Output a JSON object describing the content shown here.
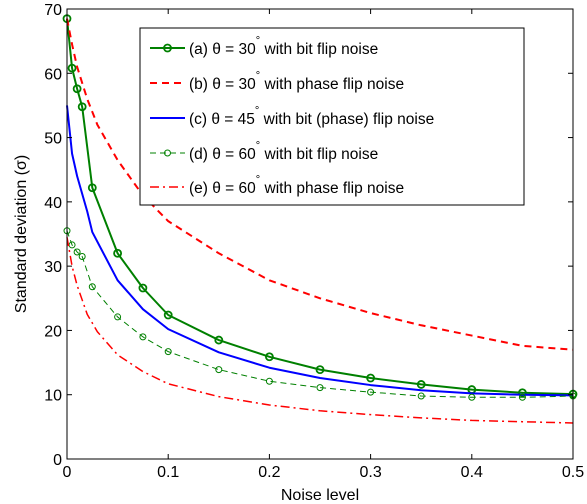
{
  "chart_data": {
    "type": "line",
    "xlabel": "Noise level",
    "ylabel": "Standard deviation (σ)",
    "xlim": [
      0,
      0.5
    ],
    "ylim": [
      0,
      70
    ],
    "x_ticks": [
      "0",
      "0.1",
      "0.2",
      "0.3",
      "0.4",
      "0.5"
    ],
    "y_ticks": [
      "0",
      "10",
      "20",
      "30",
      "40",
      "50",
      "60",
      "70"
    ],
    "grid": false,
    "legend_position": "top-right",
    "series": [
      {
        "name": "(a) θ = 30° with bit flip noise",
        "label": "(a) θ = 30",
        "label_suffix": " with bit flip noise",
        "color": "#008000",
        "style": "solid",
        "marker": "circle",
        "points": [
          [
            0,
            68.5
          ],
          [
            0.005,
            60.8
          ],
          [
            0.01,
            57.6
          ],
          [
            0.015,
            54.8
          ],
          [
            0.025,
            42.2
          ],
          [
            0.05,
            32.0
          ],
          [
            0.075,
            26.6
          ],
          [
            0.1,
            22.4
          ],
          [
            0.15,
            18.5
          ],
          [
            0.2,
            15.9
          ],
          [
            0.25,
            13.9
          ],
          [
            0.3,
            12.6
          ],
          [
            0.35,
            11.6
          ],
          [
            0.4,
            10.8
          ],
          [
            0.45,
            10.3
          ],
          [
            0.5,
            10.1
          ]
        ]
      },
      {
        "name": "(b) θ = 30° with phase flip noise",
        "label": "(b) θ = 30",
        "label_suffix": " with phase flip noise",
        "color": "#ff0000",
        "style": "dashed",
        "marker": "none",
        "points": [
          [
            0,
            68.5
          ],
          [
            0.005,
            64.5
          ],
          [
            0.01,
            61.0
          ],
          [
            0.02,
            56.0
          ],
          [
            0.03,
            52.0
          ],
          [
            0.05,
            46.5
          ],
          [
            0.075,
            41.0
          ],
          [
            0.1,
            37.0
          ],
          [
            0.15,
            32.0
          ],
          [
            0.2,
            27.8
          ],
          [
            0.25,
            25.0
          ],
          [
            0.3,
            22.7
          ],
          [
            0.35,
            20.8
          ],
          [
            0.4,
            19.2
          ],
          [
            0.45,
            17.6
          ],
          [
            0.5,
            17.0
          ]
        ]
      },
      {
        "name": "(c) θ = 45° with bit (phase) flip noise",
        "label": "(c) θ = 45",
        "label_suffix": " with bit (phase) flip noise",
        "color": "#0000ff",
        "style": "solid",
        "marker": "none",
        "points": [
          [
            0,
            55.0
          ],
          [
            0.005,
            47.5
          ],
          [
            0.01,
            44.0
          ],
          [
            0.02,
            38.5
          ],
          [
            0.025,
            35.3
          ],
          [
            0.05,
            27.8
          ],
          [
            0.075,
            23.3
          ],
          [
            0.1,
            20.2
          ],
          [
            0.15,
            16.6
          ],
          [
            0.2,
            14.2
          ],
          [
            0.25,
            12.6
          ],
          [
            0.3,
            11.5
          ],
          [
            0.35,
            10.7
          ],
          [
            0.4,
            10.2
          ],
          [
            0.45,
            10.0
          ],
          [
            0.5,
            9.9
          ]
        ]
      },
      {
        "name": "(d) θ = 60° with bit flip noise",
        "label": "(d) θ = 60",
        "label_suffix": " with bit flip noise",
        "color": "#008000",
        "style": "dashed-thin",
        "marker": "circle-thin",
        "points": [
          [
            0,
            35.5
          ],
          [
            0.005,
            33.3
          ],
          [
            0.01,
            32.2
          ],
          [
            0.015,
            31.5
          ],
          [
            0.025,
            26.8
          ],
          [
            0.05,
            22.1
          ],
          [
            0.075,
            19.0
          ],
          [
            0.1,
            16.7
          ],
          [
            0.15,
            13.9
          ],
          [
            0.2,
            12.1
          ],
          [
            0.25,
            11.1
          ],
          [
            0.3,
            10.4
          ],
          [
            0.35,
            9.8
          ],
          [
            0.4,
            9.6
          ],
          [
            0.45,
            9.6
          ],
          [
            0.5,
            9.8
          ]
        ]
      },
      {
        "name": "(e) θ = 60° with phase flip noise",
        "label": "(e) θ = 60",
        "label_suffix": " with phase flip noise",
        "color": "#ff0000",
        "style": "dashdot",
        "marker": "none",
        "points": [
          [
            0,
            34.5
          ],
          [
            0.005,
            30.0
          ],
          [
            0.01,
            27.0
          ],
          [
            0.02,
            22.5
          ],
          [
            0.03,
            19.8
          ],
          [
            0.05,
            16.2
          ],
          [
            0.075,
            13.6
          ],
          [
            0.1,
            11.7
          ],
          [
            0.15,
            9.7
          ],
          [
            0.2,
            8.4
          ],
          [
            0.25,
            7.5
          ],
          [
            0.3,
            6.9
          ],
          [
            0.35,
            6.4
          ],
          [
            0.4,
            6.0
          ],
          [
            0.45,
            5.8
          ],
          [
            0.5,
            5.6
          ]
        ]
      }
    ]
  }
}
